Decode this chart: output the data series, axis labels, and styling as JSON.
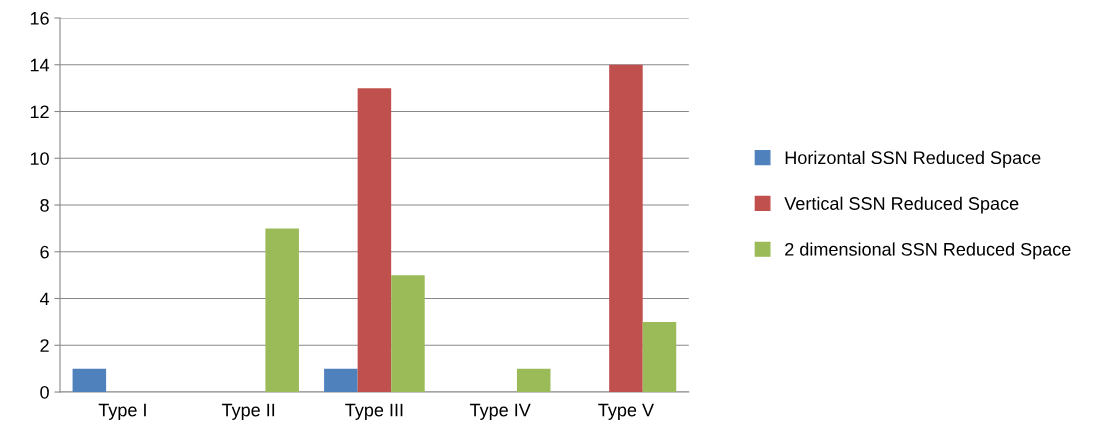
{
  "chart_data": {
    "type": "bar",
    "categories": [
      "Type I",
      "Type II",
      "Type III",
      "Type IV",
      "Type V"
    ],
    "series": [
      {
        "name": "Horizontal SSN Reduced Space",
        "color": "#4f81bd",
        "values": [
          1,
          0,
          1,
          0,
          0
        ]
      },
      {
        "name": "Vertical SSN Reduced Space",
        "color": "#c0504d",
        "values": [
          0,
          0,
          13,
          0,
          14
        ]
      },
      {
        "name": "2 dimensional SSN Reduced Space",
        "color": "#9bbb59",
        "values": [
          0,
          7,
          5,
          1,
          3
        ]
      }
    ],
    "ylim": [
      0,
      16
    ],
    "yticks": [
      0,
      2,
      4,
      6,
      8,
      10,
      12,
      14,
      16
    ],
    "grid": "y",
    "legend": "right"
  }
}
